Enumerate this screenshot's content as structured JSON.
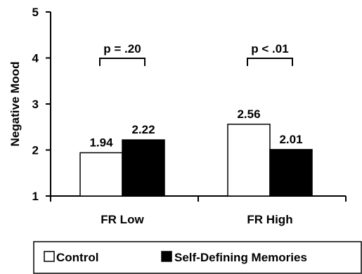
{
  "chart_data": {
    "type": "bar",
    "ylabel": "Negative Mood",
    "xlabel": "",
    "ylim": [
      1,
      5
    ],
    "yticks": [
      1,
      2,
      3,
      4,
      5
    ],
    "categories": [
      "FR Low",
      "FR High"
    ],
    "series": [
      {
        "name": "Control",
        "values": [
          1.94,
          2.56
        ],
        "color": "#ffffff"
      },
      {
        "name": "Self-Defining Memories",
        "values": [
          2.22,
          2.01
        ],
        "color": "#000000"
      }
    ],
    "value_labels": [
      [
        "1.94",
        "2.56"
      ],
      [
        "2.22",
        "2.01"
      ]
    ],
    "annotations": [
      "p = .20",
      "p < .01"
    ],
    "legend_position": "bottom",
    "grid": false
  }
}
